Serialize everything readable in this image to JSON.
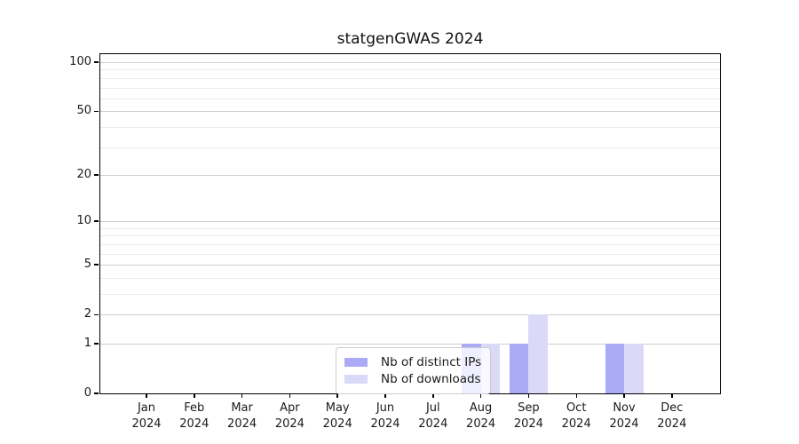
{
  "chart_data": {
    "type": "bar",
    "title": "statgenGWAS 2024",
    "categories": [
      "Jan",
      "Feb",
      "Mar",
      "Apr",
      "May",
      "Jun",
      "Jul",
      "Aug",
      "Sep",
      "Oct",
      "Nov",
      "Dec"
    ],
    "x_year_label": "2024",
    "series": [
      {
        "name": "Nb of distinct IPs",
        "color": "#abaaf7",
        "values": [
          0,
          0,
          0,
          0,
          0,
          0,
          0,
          1,
          1,
          0,
          1,
          0
        ]
      },
      {
        "name": "Nb of downloads",
        "color": "#dadaf8",
        "values": [
          0,
          0,
          0,
          0,
          0,
          0,
          0,
          1,
          2,
          0,
          1,
          0
        ]
      }
    ],
    "y_axis": {
      "scale": "log1p",
      "major_ticks": [
        0,
        1,
        2,
        5,
        10,
        20,
        50,
        100
      ],
      "minor_gridlines": [
        3,
        4,
        6,
        7,
        8,
        9,
        30,
        40,
        60,
        70,
        80,
        90
      ],
      "range": [
        0,
        112
      ]
    },
    "legend": {
      "entries": [
        "Nb of distinct IPs",
        "Nb of downloads"
      ],
      "position": "inside-bottom-center"
    },
    "colors": {
      "major_grid": "#cfcfcf",
      "minor_grid": "#ededed",
      "axis": "#000000",
      "text": "#1a1a1a"
    },
    "grid": "horizontal-only"
  }
}
